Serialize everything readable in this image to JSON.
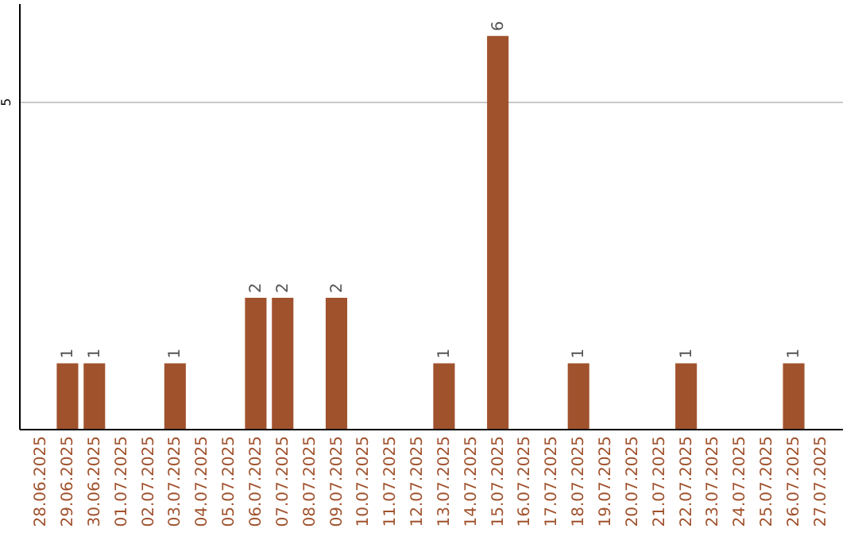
{
  "chart_data": {
    "type": "bar",
    "categories": [
      "28.06.2025",
      "29.06.2025",
      "30.06.2025",
      "01.07.2025",
      "02.07.2025",
      "03.07.2025",
      "04.07.2025",
      "05.07.2025",
      "06.07.2025",
      "07.07.2025",
      "08.07.2025",
      "09.07.2025",
      "10.07.2025",
      "11.07.2025",
      "12.07.2025",
      "13.07.2025",
      "14.07.2025",
      "15.07.2025",
      "16.07.2025",
      "17.07.2025",
      "18.07.2025",
      "19.07.2025",
      "20.07.2025",
      "21.07.2025",
      "22.07.2025",
      "23.07.2025",
      "24.07.2025",
      "25.07.2025",
      "26.07.2025",
      "27.07.2025"
    ],
    "values": [
      0,
      1,
      1,
      0,
      0,
      1,
      0,
      0,
      2,
      2,
      0,
      2,
      0,
      0,
      0,
      1,
      0,
      6,
      0,
      0,
      1,
      0,
      0,
      0,
      1,
      0,
      0,
      0,
      1,
      0
    ],
    "value_labels": [
      null,
      "1",
      "1",
      null,
      null,
      "1",
      null,
      null,
      "2",
      "2",
      null,
      "2",
      null,
      null,
      null,
      "1",
      null,
      "6",
      null,
      null,
      "1",
      null,
      null,
      null,
      "1",
      null,
      null,
      null,
      "1",
      null
    ],
    "color": "#a0522d",
    "ylim": [
      0,
      6.5
    ],
    "yticks": [
      5
    ],
    "grid": "y"
  }
}
